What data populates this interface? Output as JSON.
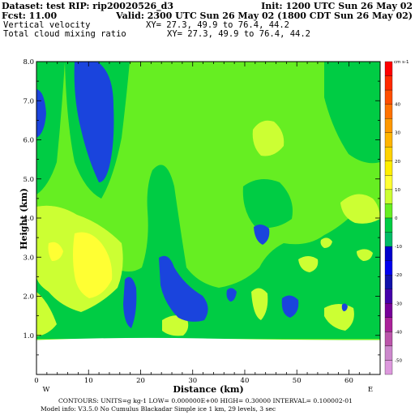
{
  "header": {
    "dataset_line": "Dataset: test  RIP: rip20020526_d3",
    "init_line": "Init: 1200 UTC Sun 26 May 02",
    "fcst_line": "Fcst:     11.00",
    "valid_line": "Valid: 2300 UTC Sun 26 May 02 (1800 CDT Sun 26 May 02)",
    "var1_name": "Vertical velocity",
    "var1_xy": "XY=  27.3, 49.9 to  76.4, 44.2",
    "var2_name": "Total cloud mixing ratio",
    "var2_xy": "XY=  27.3, 49.9 to  76.4, 44.2"
  },
  "footer": {
    "contours_line": "CONTOURS:  UNITS=g kg-1   LOW= 0.000000E+00  HIGH= 0.30000        INTERVAL=  0.100002-01",
    "model_line": "Model info: V3.5.0 No Cumulus Blackadar  Simple ice    1 km,   29 levels,     3 sec"
  },
  "chart_data": {
    "type": "heatmap",
    "xlabel": "Distance (km)",
    "ylabel": "Height (km)",
    "xlim": [
      0,
      66
    ],
    "ylim": [
      0,
      8
    ],
    "xticks": [
      0,
      10,
      20,
      30,
      40,
      50,
      60
    ],
    "yticks": [
      "1.0",
      "2.0",
      "3.0",
      "4.0",
      "5.0",
      "6.0",
      "7.0",
      "8.0"
    ],
    "x_end_labels": {
      "left": "W",
      "right": "E"
    },
    "terrain_height_km": 0.88,
    "colorbar": {
      "units_label": "cm s-1",
      "levels": [
        "40",
        "30",
        "20",
        "10",
        "0",
        "-10",
        "-20",
        "-30",
        "-40",
        "-50"
      ],
      "bins": [
        {
          "lo": 50,
          "color": "#ff0000"
        },
        {
          "lo": 45,
          "color": "#ff2a00"
        },
        {
          "lo": 40,
          "color": "#ff4e00"
        },
        {
          "lo": 35,
          "color": "#ff7200"
        },
        {
          "lo": 30,
          "color": "#ff9800"
        },
        {
          "lo": 25,
          "color": "#ffb400"
        },
        {
          "lo": 20,
          "color": "#ffd200"
        },
        {
          "lo": 15,
          "color": "#ffee00"
        },
        {
          "lo": 10,
          "color": "#ffff33"
        },
        {
          "lo": 5,
          "color": "#ccff33"
        },
        {
          "lo": 0,
          "color": "#66ee22"
        },
        {
          "lo": -5,
          "color": "#00cc44"
        },
        {
          "lo": -10,
          "color": "#00bb66"
        },
        {
          "lo": -15,
          "color": "#0000cc"
        },
        {
          "lo": -20,
          "color": "#0000ee"
        },
        {
          "lo": -25,
          "color": "#1111aa"
        },
        {
          "lo": -30,
          "color": "#4400aa"
        },
        {
          "lo": -35,
          "color": "#770099"
        },
        {
          "lo": -40,
          "color": "#aa2299"
        },
        {
          "lo": -45,
          "color": "#bb55aa"
        },
        {
          "lo": -50,
          "color": "#cc88cc"
        },
        {
          "lo": -55,
          "color": "#dd99dd"
        }
      ]
    },
    "field_colors": {
      "bright_green": "#66ee22",
      "dark_green": "#00cc44",
      "light_green": "#ccff33",
      "yellow": "#ffff33",
      "blue": "#1a44dd",
      "dark_blue": "#0000cc"
    }
  }
}
